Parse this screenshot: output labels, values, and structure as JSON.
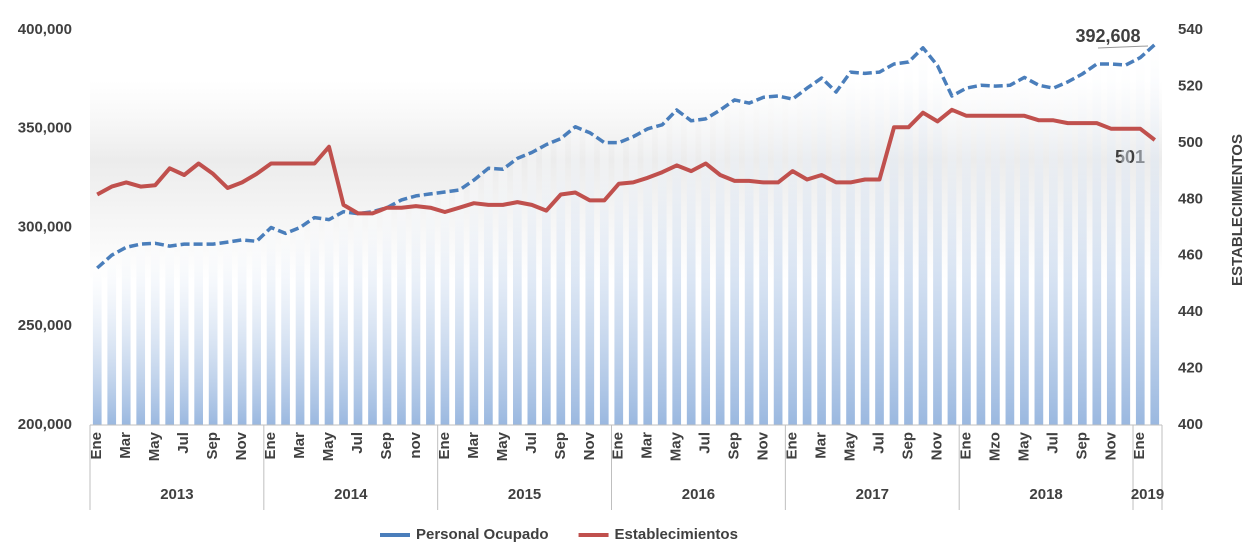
{
  "chart_data": {
    "type": "bar-line",
    "y2_axis_label": "ESTABLECIMIENTOS",
    "categories": [
      "Ene",
      null,
      "Mar",
      null,
      "May",
      null,
      "Jul",
      null,
      "Sep",
      null,
      "Nov",
      null,
      "Ene",
      null,
      "Mar",
      null,
      "May",
      null,
      "Jul",
      null,
      "Sep",
      null,
      "nov",
      null,
      "Ene",
      null,
      "Mar",
      null,
      "May",
      null,
      "Jul",
      null,
      "Sep",
      null,
      "Nov",
      null,
      "Ene",
      null,
      "Mar",
      null,
      "May",
      null,
      "Jul",
      null,
      "Sep",
      null,
      "Nov",
      null,
      "Ene",
      null,
      "Mar",
      null,
      "May",
      null,
      "Jul",
      null,
      "Sep",
      null,
      "Nov",
      null,
      "Ene",
      null,
      "Mzo",
      null,
      "May",
      null,
      "Jul",
      null,
      "Sep",
      null,
      "Nov",
      null,
      "Ene",
      null
    ],
    "years": [
      "2013",
      "2014",
      "2015",
      "2016",
      "2017",
      "2018",
      "2019"
    ],
    "series": [
      {
        "name": "Personal Ocupado",
        "color": "#4a7ebb",
        "axis": "y",
        "values": [
          279500,
          286000,
          290000,
          291600,
          292000,
          290600,
          291600,
          291600,
          291600,
          292600,
          293700,
          293000,
          300000,
          297000,
          300000,
          305000,
          304000,
          308000,
          307000,
          308000,
          310000,
          314000,
          316000,
          317000,
          318000,
          319000,
          324000,
          330000,
          329500,
          335000,
          338000,
          342000,
          345000,
          351000,
          348000,
          343000,
          343000,
          346000,
          350000,
          352000,
          359500,
          354000,
          355000,
          359500,
          364600,
          363000,
          366000,
          366600,
          365000,
          370600,
          375700,
          368600,
          378700,
          378000,
          378700,
          382800,
          383800,
          391000,
          382000,
          366600,
          370600,
          372000,
          371600,
          372000,
          376000,
          372000,
          370600,
          373700,
          377700,
          382800,
          382800,
          382300,
          386000,
          392608
        ]
      },
      {
        "name": "Establecimientos",
        "color": "#c0504d",
        "axis": "y2",
        "values": [
          481.7,
          484.5,
          486,
          484.5,
          485,
          491,
          488.6,
          492.7,
          489,
          484,
          486,
          489,
          492.7,
          492.7,
          492.7,
          492.7,
          498.6,
          478,
          475,
          475,
          477,
          477,
          477.6,
          477,
          475.5,
          477,
          478.6,
          478,
          478,
          479,
          478,
          476,
          481.7,
          482.4,
          479.6,
          479.6,
          485.5,
          486,
          487.6,
          489.6,
          492,
          490,
          492.7,
          488.6,
          486.5,
          486.5,
          486,
          486,
          490,
          487,
          488.6,
          486,
          486,
          487,
          487,
          505.5,
          505.5,
          510.7,
          507.6,
          511.7,
          509.6,
          509.6,
          509.6,
          509.6,
          509.6,
          508,
          508,
          507,
          507,
          507,
          505,
          505,
          505,
          501
        ]
      }
    ],
    "ylim": [
      200000,
      400000
    ],
    "yticks": [
      {
        "value": 200000,
        "label": "200,000"
      },
      {
        "value": 250000,
        "label": "250,000"
      },
      {
        "value": 300000,
        "label": "300,000"
      },
      {
        "value": 350000,
        "label": "350,000"
      },
      {
        "value": 400000,
        "label": "400,000"
      }
    ],
    "y2lim": [
      400,
      540
    ],
    "y2ticks": [
      400,
      420,
      440,
      460,
      480,
      500,
      520,
      540
    ],
    "annotations": [
      {
        "text": "392,608"
      },
      {
        "text": "501"
      }
    ],
    "legend": "bottom"
  }
}
